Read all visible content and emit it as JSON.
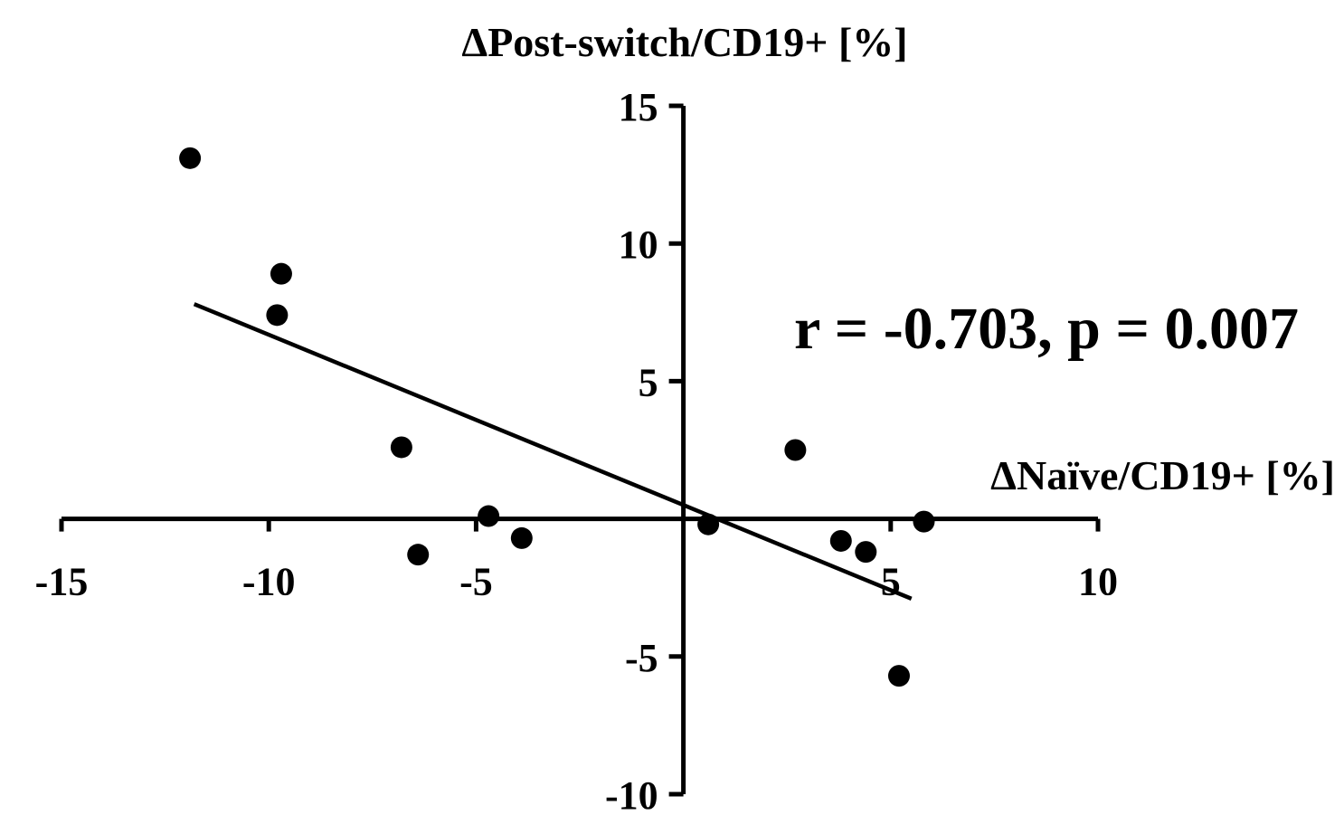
{
  "chart_data": {
    "type": "scatter",
    "title": "",
    "xlabel": "ΔNaïve/CD19+ [%]",
    "ylabel": "ΔPost-switch/CD19+ [%]",
    "xlim": [
      -15,
      10
    ],
    "ylim": [
      -10,
      15
    ],
    "xticks": [
      -15,
      -10,
      -5,
      5,
      10
    ],
    "yticks": [
      15,
      10,
      5,
      -5,
      -10
    ],
    "xtick_labels": [
      "-15",
      "-10",
      "-5",
      "5",
      "10"
    ],
    "ytick_labels": [
      "15",
      "10",
      "5",
      "-5",
      "-10"
    ],
    "grid": false,
    "axes_cross_at_origin": true,
    "points": [
      {
        "x": -11.9,
        "y": 13.1
      },
      {
        "x": -9.7,
        "y": 8.9
      },
      {
        "x": -9.8,
        "y": 7.4
      },
      {
        "x": -6.8,
        "y": 2.6
      },
      {
        "x": -4.7,
        "y": 0.1
      },
      {
        "x": -6.4,
        "y": -1.3
      },
      {
        "x": -3.9,
        "y": -0.7
      },
      {
        "x": 0.6,
        "y": -0.2
      },
      {
        "x": 2.7,
        "y": 2.5
      },
      {
        "x": 3.8,
        "y": -0.8
      },
      {
        "x": 4.4,
        "y": -1.2
      },
      {
        "x": 5.8,
        "y": -0.1
      },
      {
        "x": 5.2,
        "y": -5.7
      }
    ],
    "fit_line": {
      "x": [
        -11.8,
        5.5
      ],
      "y": [
        7.8,
        -2.9
      ]
    },
    "annotation": "r = -0.703, p = 0.007"
  }
}
